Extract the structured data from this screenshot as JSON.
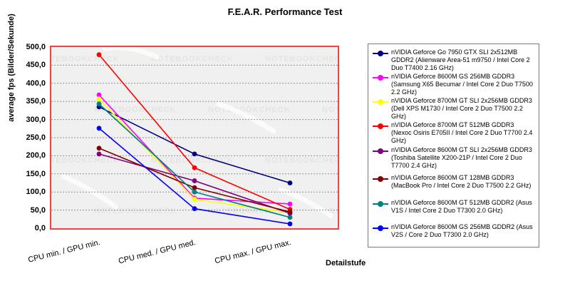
{
  "chart_data": {
    "type": "line",
    "title": "F.E.A.R. Performance Test",
    "xlabel": "Detailstufe",
    "ylabel": "average fps (Bilder/Sekunde)",
    "categories": [
      "CPU min. / GPU min.",
      "CPU med. / GPU med.",
      "CPU max. / GPU max."
    ],
    "ylim": [
      0,
      500
    ],
    "ytick_step": 50,
    "ytick_labels": [
      "500,0",
      "450,0",
      "400,0",
      "350,0",
      "300,0",
      "250,0",
      "200,0",
      "150,0",
      "100,0",
      "50,0",
      "0,0"
    ],
    "grid": true,
    "legend_position": "right",
    "series": [
      {
        "name": "nVIDIA Geforce Go 7950 GTX SLI 2x512MB GDDR2 (Alienware Area-51 m9750 / Intel Core 2 Duo T7400 2.16 GHz)",
        "color": "#000080",
        "values": [
          335,
          205,
          125
        ]
      },
      {
        "name": "nVIDIA Geforce 8600M GS 256MB GDDR3 (Samsung X65 Becumar / Intel Core 2 Duo T7500 2.2 GHz)",
        "color": "#FF00FF",
        "values": [
          368,
          83,
          67
        ]
      },
      {
        "name": "nVIDIA Geforce 8700M GT SLI 2x256MB GDDR3 (Dell XPS M1730 / Intel Core 2 Duo T7500  2.2 GHz)",
        "color": "#FFFF00",
        "values": [
          357,
          80,
          43
        ]
      },
      {
        "name": "nVIDIA Geforce 8700M GT 512MB GDDR3 (Nexoc Osiris E705II / Intel Core 2 Duo T7700 2.4 GHz)",
        "color": "#FF0000",
        "values": [
          479,
          167,
          52
        ]
      },
      {
        "name": "nVIDIA Geforce 8600M GT SLI 2x256MB GDDR3 (Toshiba Satellite X200-21P / Intel Core 2 Duo T7700 2.4 GHz)",
        "color": "#800080",
        "values": [
          205,
          131,
          41
        ]
      },
      {
        "name": "nVIDIA Geforce 8600M GT 128MB GDDR3 (MacBook Pro / Intel Core 2 Duo T7500 2.2 GHz)",
        "color": "#800000",
        "values": [
          221,
          112,
          45
        ]
      },
      {
        "name": "nVIDIA Geforce 8600M GT 512MB GDDR2 (Asus V1S / Intel Core 2 Duo T7300 2.0 GHz)",
        "color": "#008080",
        "values": [
          343,
          100,
          30
        ]
      },
      {
        "name": "nVIDIA Geforce 8600M GS 256MB GDDR2 (Asus V2S / Core 2 Duo T7300 2.0 GHz)",
        "color": "#0000FF",
        "values": [
          276,
          54,
          12
        ]
      }
    ]
  },
  "watermark": {
    "text": "NOTEBOOKCHECK"
  },
  "colors": {
    "plot_border": "#ef4444",
    "plot_background": "#f0f0f0",
    "gridline": "#909090"
  }
}
